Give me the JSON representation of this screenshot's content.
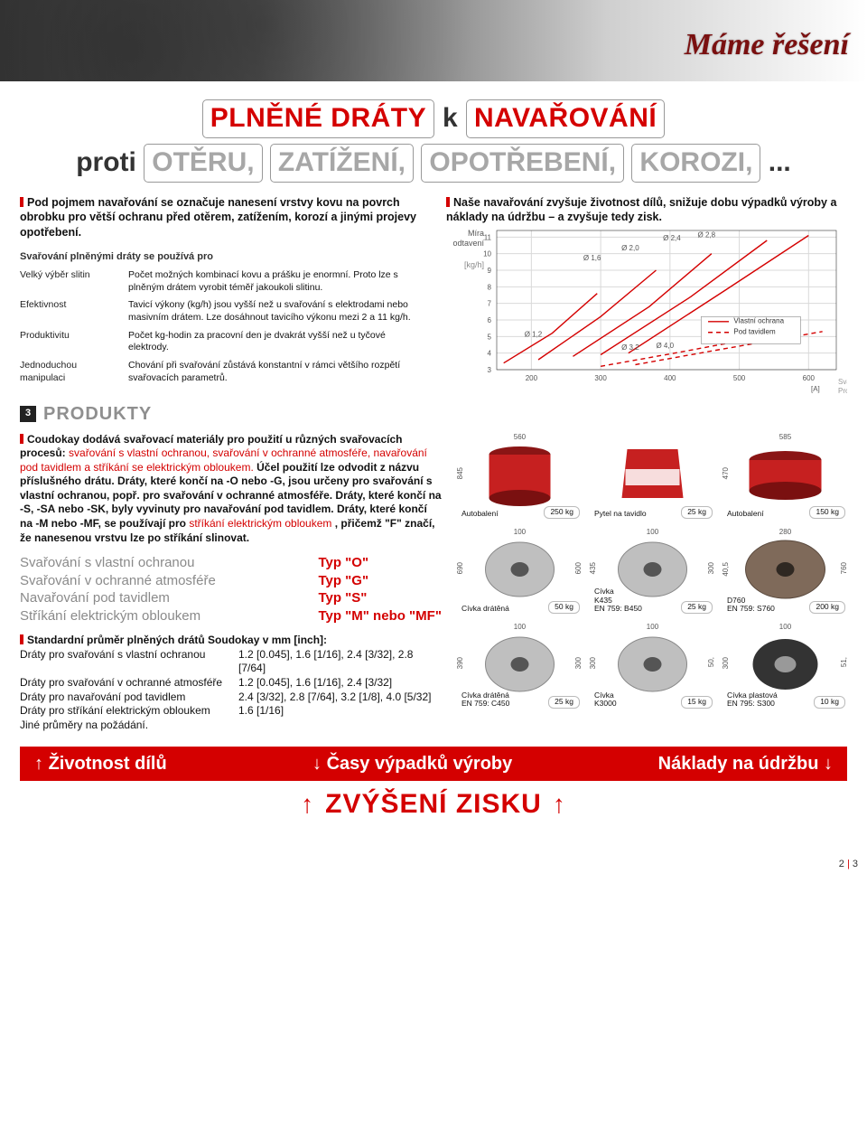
{
  "banner_slogan": "Máme řešení",
  "title": {
    "l1a": "PLNĚNÉ DRÁTY",
    "l1k": "k",
    "l1b": "NAVAŘOVÁNÍ",
    "l2a": "proti",
    "l2b": "OTĚRU,",
    "l2c": "ZATÍŽENÍ,",
    "l2d": "OPOTŘEBENÍ,",
    "l2e": "KOROZI,",
    "l2f": "..."
  },
  "lead_left": "Pod pojmem navařování se označuje nanesení vrstvy kovu na povrch obrobku pro větší ochranu před otěrem, zatížením, korozí a jinými projevy opotřebení.",
  "lead_right": "Naše navařování zvyšuje životnost dílů, snižuje dobu výpadků výroby a náklady na údržbu – a zvyšuje tedy zisk.",
  "uses_head": "Svařování plněnými dráty se používá pro",
  "uses": [
    {
      "k": "Velký výběr slitin",
      "v": "Počet možných kombinací kovu a prášku je enormní. Proto lze s plněným drátem vyrobit téměř jakoukoli slitinu."
    },
    {
      "k": "Efektivnost",
      "v": "Tavicí výkony (kg/h) jsou vyšší než u svařování s elektrodami nebo masivním drátem. Lze dosáhnout tavicího výkonu mezi 2 a 11 kg/h."
    },
    {
      "k": "Produktivitu",
      "v": "Počet kg-hodin za pracovní den je dvakrát vyšší než u tyčové elektrody."
    },
    {
      "k": "Jednoduchou manipulaci",
      "v": "Chování při svařování zůstává konstantní v rámci většího rozpětí svařovacích parametrů."
    }
  ],
  "chart": {
    "ylab1": "Míra",
    "ylab2": "odtavení",
    "yunit": "[kg/h]",
    "xunit": "[A]",
    "xlab": "Svařovací Proud",
    "y_ticks": [
      3,
      4,
      5,
      6,
      7,
      8,
      9,
      10,
      11
    ],
    "x_ticks": [
      200,
      300,
      400,
      500,
      600
    ],
    "diam_labels": [
      "Ø 1,2",
      "Ø 1,6",
      "Ø 2,0",
      "Ø 2,4",
      "Ø 2,8",
      "Ø 3,2",
      "Ø 4,0"
    ],
    "legend": [
      "Vlastní ochrana",
      "Pod tavidlem"
    ],
    "colors": {
      "grid": "#d9d9d9",
      "solid": "#d40000",
      "dash": "#d40000",
      "axis": "#333"
    },
    "xlim": [
      150,
      640
    ],
    "ylim": [
      3,
      11.4
    ]
  },
  "sect_num": "3",
  "sect_title": "PRODUKTY",
  "para2a": "Соudokay dodává svařovací materiály pro použití u různých svařovacích procesů: ",
  "para2b": "svařování s vlastní ochranou, svařování v ochranné atmosféře, navařování pod tavidlem a stříkání se elektrickým obloukem.",
  "para2c": " Účel použití lze odvodit z názvu příslušného drátu. ",
  "para2d": "Dráty, které končí na -O nebo -G, jsou určeny pro svařování s vlastní ochranou, popř. pro svařování v ochranné atmosféře. Dráty, které končí na -S, -SA nebo -SK, byly vyvinuty pro navařování pod tavidlem. Dráty, které končí na -M nebo -MF, se používají pro ",
  "para2e": "stříkání elektrickým obloukem",
  "para2f": ", přičemž \"F\" značí, že nanesenou vrstvu lze po stříkání slinovat.",
  "types": [
    {
      "l": "Svařování s vlastní ochranou",
      "r": "Typ \"O\""
    },
    {
      "l": "Svařování v ochranné atmosféře",
      "r": "Typ \"G\""
    },
    {
      "l": "Navařování pod tavidlem",
      "r": "Typ \"S\""
    },
    {
      "l": "Stříkání elektrickým obloukem",
      "r": "Typ \"M\" nebo \"MF\""
    }
  ],
  "diam_head": "Standardní průměr plněných drátů Soudokay v mm [inch]:",
  "diam_rows": [
    {
      "l": "Dráty pro svařování s vlastní ochranou",
      "r": "1.2 [0.045], 1.6 [1/16], 2.4 [3/32], 2.8 [7/64]"
    },
    {
      "l": "Dráty pro svařování v ochranné atmosféře",
      "r": "1.2 [0.045], 1.6 [1/16], 2.4 [3/32]"
    },
    {
      "l": "Dráty pro navařování pod tavidlem",
      "r": "2.4 [3/32], 2.8 [7/64], 3.2 [1/8], 4.0 [5/32]"
    },
    {
      "l": "Dráty pro stříkání elektrickým obloukem",
      "r": "1.6 [1/16]"
    },
    {
      "l": "Jiné průměry na požádání.",
      "r": ""
    }
  ],
  "packs": [
    {
      "cap": "Autobalení",
      "wt": "250 kg",
      "dims": [
        "560",
        "845"
      ],
      "shape": "drum",
      "col": "#c62020"
    },
    {
      "cap": "Pytel na tavidlo",
      "wt": "25 kg",
      "dims": [],
      "shape": "bag",
      "col": "#c62020"
    },
    {
      "cap": "Autobalení",
      "wt": "150 kg",
      "dims": [
        "585",
        "470"
      ],
      "shape": "drumlow",
      "col": "#c62020"
    },
    {
      "cap": "Cívka drátěná",
      "wt": "50 kg",
      "dims": [
        "100",
        "690",
        "600"
      ],
      "shape": "spool",
      "col": "#bfbfbf"
    },
    {
      "cap": "Cívka\nK435\nEN 759: B450",
      "wt": "25 kg",
      "dims": [
        "100",
        "435",
        "300"
      ],
      "shape": "spool",
      "col": "#bfbfbf"
    },
    {
      "cap": "D760\nEN 759: S760",
      "wt": "200 kg",
      "dims": [
        "280",
        "40,5",
        "760"
      ],
      "shape": "bigspool",
      "col": "#7f6a5a"
    },
    {
      "cap": "Cívka drátěná\nEN 759: C450",
      "wt": "25 kg",
      "dims": [
        "100",
        "390",
        "300"
      ],
      "shape": "spool",
      "col": "#bfbfbf"
    },
    {
      "cap": "Cívka\nK3000",
      "wt": "15 kg",
      "dims": [
        "100",
        "300",
        "50,"
      ],
      "shape": "spool",
      "col": "#bfbfbf"
    },
    {
      "cap": "Cívka plastová\nEN 795: S300",
      "wt": "10 kg",
      "dims": [
        "100",
        "300",
        "51,"
      ],
      "shape": "plastspool",
      "col": "#333333"
    }
  ],
  "band": {
    "a": "Životnost dílů",
    "b": "Časy výpadků výroby",
    "c": "Náklady na údržbu"
  },
  "band2": "ZVÝŠENÍ ZISKU",
  "pagenum": {
    "a": "2",
    "b": "3"
  }
}
